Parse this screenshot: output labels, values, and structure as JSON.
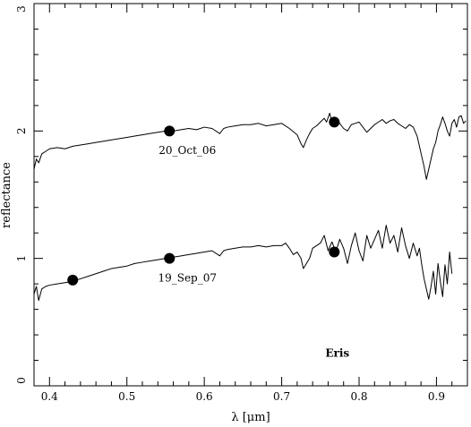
{
  "chart_data": {
    "type": "line",
    "title": "",
    "xlabel": "λ [μm]",
    "ylabel": "reflectance",
    "xlim": [
      0.38,
      0.94
    ],
    "ylim": [
      0,
      3
    ],
    "xticks": [
      0.4,
      0.5,
      0.6,
      0.7,
      0.8,
      0.9
    ],
    "xtick_labels": [
      "0.4",
      "0.5",
      "0.6",
      "0.7",
      "0.8",
      "0.9"
    ],
    "yticks": [
      0,
      1,
      2,
      3
    ],
    "ytick_labels": [
      "0",
      "1",
      "2",
      "3"
    ],
    "grid": false,
    "legend": "none",
    "annotation": "Eris",
    "colors": {
      "line": "#000000",
      "marker": "#000000"
    },
    "series": [
      {
        "name": "20_Oct_06",
        "x": [
          0.38,
          0.383,
          0.386,
          0.39,
          0.395,
          0.4,
          0.41,
          0.42,
          0.43,
          0.44,
          0.45,
          0.46,
          0.47,
          0.48,
          0.49,
          0.5,
          0.51,
          0.52,
          0.53,
          0.54,
          0.55,
          0.56,
          0.57,
          0.58,
          0.59,
          0.6,
          0.61,
          0.62,
          0.625,
          0.63,
          0.64,
          0.65,
          0.66,
          0.67,
          0.68,
          0.69,
          0.7,
          0.71,
          0.72,
          0.725,
          0.728,
          0.732,
          0.736,
          0.74,
          0.745,
          0.75,
          0.755,
          0.758,
          0.762,
          0.766,
          0.77,
          0.775,
          0.78,
          0.785,
          0.79,
          0.795,
          0.8,
          0.805,
          0.81,
          0.815,
          0.82,
          0.825,
          0.83,
          0.835,
          0.84,
          0.845,
          0.85,
          0.855,
          0.86,
          0.865,
          0.87,
          0.875,
          0.878,
          0.881,
          0.884,
          0.887,
          0.89,
          0.893,
          0.896,
          0.899,
          0.902,
          0.905,
          0.908,
          0.911,
          0.914,
          0.917,
          0.92,
          0.923,
          0.926,
          0.929,
          0.932,
          0.935,
          0.938
        ],
        "y": [
          1.7,
          1.78,
          1.75,
          1.82,
          1.84,
          1.86,
          1.87,
          1.86,
          1.88,
          1.89,
          1.9,
          1.91,
          1.92,
          1.93,
          1.94,
          1.95,
          1.96,
          1.97,
          1.98,
          1.99,
          2.0,
          2.0,
          2.01,
          2.02,
          2.01,
          2.03,
          2.02,
          1.98,
          2.02,
          2.03,
          2.04,
          2.05,
          2.05,
          2.06,
          2.04,
          2.05,
          2.06,
          2.02,
          1.97,
          1.9,
          1.87,
          1.93,
          1.98,
          2.02,
          2.04,
          2.07,
          2.1,
          2.07,
          2.14,
          2.04,
          2.1,
          2.06,
          2.02,
          2.0,
          2.05,
          2.06,
          2.07,
          2.03,
          1.99,
          2.02,
          2.05,
          2.07,
          2.09,
          2.06,
          2.08,
          2.09,
          2.06,
          2.04,
          2.02,
          2.05,
          2.03,
          1.96,
          1.88,
          1.8,
          1.72,
          1.62,
          1.7,
          1.78,
          1.86,
          1.91,
          2.0,
          2.05,
          2.11,
          2.06,
          2.0,
          1.96,
          2.06,
          2.09,
          2.03,
          2.11,
          2.12,
          2.06,
          2.08
        ]
      },
      {
        "name": "19_Sep_07",
        "x": [
          0.38,
          0.383,
          0.386,
          0.39,
          0.395,
          0.4,
          0.41,
          0.42,
          0.43,
          0.44,
          0.45,
          0.46,
          0.47,
          0.48,
          0.49,
          0.5,
          0.51,
          0.52,
          0.53,
          0.54,
          0.55,
          0.56,
          0.57,
          0.58,
          0.59,
          0.6,
          0.61,
          0.62,
          0.625,
          0.63,
          0.64,
          0.65,
          0.66,
          0.67,
          0.68,
          0.69,
          0.7,
          0.705,
          0.71,
          0.715,
          0.72,
          0.725,
          0.728,
          0.732,
          0.736,
          0.74,
          0.745,
          0.75,
          0.755,
          0.76,
          0.765,
          0.77,
          0.775,
          0.78,
          0.785,
          0.79,
          0.795,
          0.8,
          0.805,
          0.81,
          0.815,
          0.82,
          0.825,
          0.83,
          0.835,
          0.84,
          0.845,
          0.85,
          0.855,
          0.86,
          0.865,
          0.87,
          0.875,
          0.878,
          0.881,
          0.884,
          0.887,
          0.89,
          0.893,
          0.896,
          0.899,
          0.902,
          0.905,
          0.908,
          0.911,
          0.914,
          0.917,
          0.92
        ],
        "y": [
          0.72,
          0.78,
          0.67,
          0.76,
          0.78,
          0.79,
          0.8,
          0.81,
          0.82,
          0.84,
          0.86,
          0.88,
          0.9,
          0.92,
          0.93,
          0.94,
          0.96,
          0.97,
          0.98,
          0.99,
          1.0,
          1.01,
          1.02,
          1.03,
          1.04,
          1.05,
          1.06,
          1.02,
          1.06,
          1.07,
          1.08,
          1.09,
          1.09,
          1.1,
          1.09,
          1.1,
          1.1,
          1.12,
          1.08,
          1.03,
          1.05,
          1.0,
          0.92,
          0.96,
          1.0,
          1.08,
          1.1,
          1.12,
          1.18,
          1.06,
          1.13,
          1.05,
          1.15,
          1.08,
          0.96,
          1.1,
          1.2,
          1.06,
          0.98,
          1.18,
          1.08,
          1.15,
          1.22,
          1.08,
          1.26,
          1.12,
          1.18,
          1.05,
          1.24,
          1.1,
          1.0,
          1.12,
          1.02,
          1.08,
          0.95,
          0.84,
          0.76,
          0.68,
          0.78,
          0.9,
          0.72,
          0.96,
          0.82,
          0.7,
          0.95,
          0.8,
          1.05,
          0.88
        ]
      }
    ],
    "markers": [
      {
        "series": "20_Oct_06",
        "x": 0.555,
        "y": 2.0
      },
      {
        "series": "20_Oct_06",
        "x": 0.768,
        "y": 2.07
      },
      {
        "series": "19_Sep_07",
        "x": 0.43,
        "y": 0.83
      },
      {
        "series": "19_Sep_07",
        "x": 0.555,
        "y": 1.0
      },
      {
        "series": "19_Sep_07",
        "x": 0.768,
        "y": 1.05
      }
    ],
    "series_labels": [
      {
        "text": "20_Oct_06",
        "x": 0.555,
        "y": 1.82
      },
      {
        "text": "19_Sep_07",
        "x": 0.555,
        "y": 0.82
      }
    ],
    "annotation_pos": {
      "x": 0.772,
      "y": 0.23
    }
  }
}
